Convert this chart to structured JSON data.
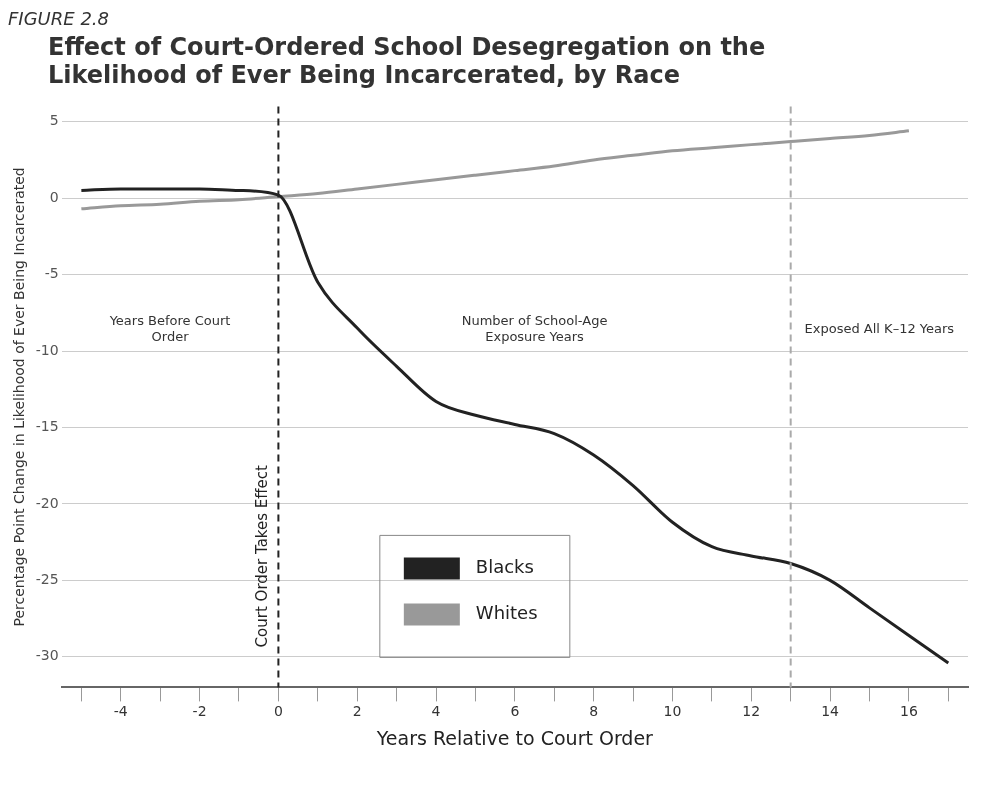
{
  "chart_data": {
    "type": "line",
    "title": "Effect of Court-Ordered School Desegregation on the Likelihood of Ever Being Incarcerated, by Race",
    "xlabel": "Years Relative to Court Order",
    "ylabel": "Percentage Point Change in Likelihood of Ever Being Incarcerated",
    "x": [
      -5,
      -4,
      -3,
      -2,
      -1,
      0,
      1,
      2,
      3,
      4,
      5,
      6,
      7,
      8,
      9,
      10,
      11,
      12,
      13,
      14,
      15,
      16,
      17
    ],
    "series": [
      {
        "name": "Blacks",
        "color": "#222222",
        "values": [
          0.5,
          0.6,
          0.6,
          0.6,
          0.5,
          0.2,
          -5.5,
          -8.5,
          -11,
          -13.3,
          -14.2,
          -14.8,
          -15.4,
          -16.8,
          -18.8,
          -21.2,
          -22.8,
          -23.4,
          -23.9,
          -25,
          -26.8,
          -28.6,
          -30.4
        ]
      },
      {
        "name": "Whites",
        "color": "#999999",
        "values": [
          -0.7,
          -0.5,
          -0.4,
          -0.2,
          -0.1,
          0.1,
          0.3,
          0.6,
          0.9,
          1.2,
          1.5,
          1.8,
          2.1,
          2.5,
          2.8,
          3.1,
          3.3,
          3.5,
          3.7,
          3.9,
          4.1,
          4.4,
          null
        ]
      }
    ],
    "xlim": [
      -5.5,
      17.5
    ],
    "ylim": [
      -32,
      6
    ],
    "xticks": [
      {
        "value": -5,
        "label": null
      },
      -4,
      {
        "value": -3,
        "label": null
      },
      -2,
      {
        "value": -1,
        "label": null
      },
      0,
      {
        "value": 1,
        "label": null
      },
      2,
      {
        "value": 3,
        "label": null
      },
      4,
      {
        "value": 5,
        "label": null
      },
      6,
      {
        "value": 7,
        "label": null
      },
      8,
      {
        "value": 9,
        "label": null
      },
      10,
      {
        "value": 11,
        "label": null
      },
      12,
      {
        "value": 13,
        "label": null
      },
      14,
      {
        "value": 15,
        "label": null
      },
      16,
      {
        "value": 17,
        "label": null
      }
    ],
    "yticks": [
      5,
      0,
      -5,
      -10,
      -15,
      -20,
      -25,
      -30
    ],
    "grid": "y",
    "legend": "bottom",
    "marker": "none",
    "line_style": "solid",
    "ref_lines": [
      {
        "axis": "x",
        "value": 0,
        "label": "Court Order Takes Effect",
        "line_style": "dashed",
        "color": "#222222"
      },
      {
        "axis": "x",
        "value": 13,
        "label": null,
        "line_style": "dashed",
        "color": "#aaaaaa"
      }
    ],
    "annotations": [
      "FIGURE 2.8",
      "Years Before Court Order",
      "Number of School-Age Exposure Years",
      "Exposed All K–12 Years"
    ]
  }
}
